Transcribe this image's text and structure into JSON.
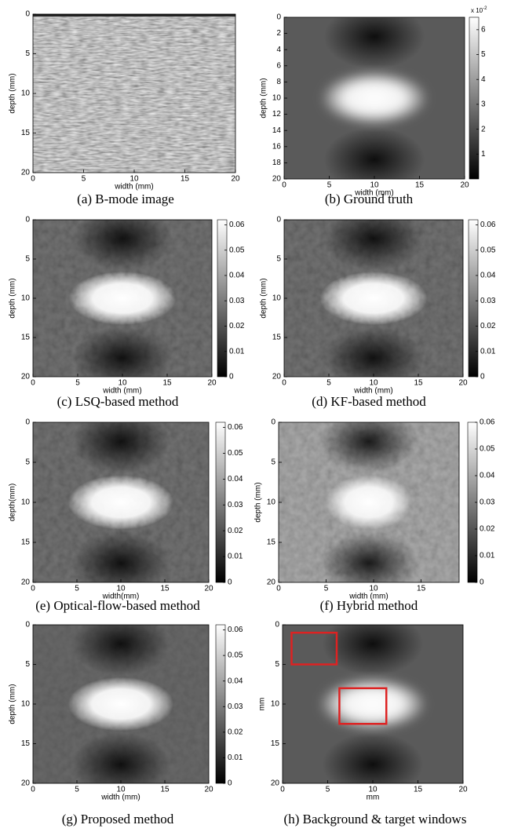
{
  "panels": [
    {
      "caption": "(a) B-mode image",
      "xlabel": "width (mm)",
      "ylabel": "depth (mm)",
      "xlim": [
        0,
        20
      ],
      "ylim": [
        0,
        20
      ],
      "xticks": [
        0,
        5,
        10,
        15,
        20
      ],
      "yticks": [
        0,
        5,
        10,
        15,
        20
      ]
    },
    {
      "caption": "(b) Ground truth",
      "xlabel": "width (mm)",
      "ylabel": "depth (mm)",
      "xlim": [
        0,
        20
      ],
      "ylim": [
        0,
        20
      ],
      "xticks": [
        0,
        5,
        10,
        15,
        20
      ],
      "yticks": [
        0,
        2,
        4,
        6,
        8,
        10,
        12,
        14,
        16,
        18,
        20
      ],
      "colorbar": {
        "clim": [
          0,
          6.5
        ],
        "ticks": [
          1,
          2,
          3,
          4,
          5,
          6
        ],
        "multiplier": "x 10",
        "exponent": "-2"
      }
    },
    {
      "caption": "(c) LSQ-based method",
      "xlabel": "width (mm)",
      "ylabel": "depth (mm)",
      "xlim": [
        0,
        20
      ],
      "ylim": [
        0,
        20
      ],
      "xticks": [
        0,
        5,
        10,
        15,
        20
      ],
      "yticks": [
        0,
        5,
        10,
        15,
        20
      ],
      "colorbar": {
        "clim": [
          0,
          0.062
        ],
        "ticks": [
          0,
          0.01,
          0.02,
          0.03,
          0.04,
          0.05,
          0.06
        ]
      }
    },
    {
      "caption": "(d) KF-based method",
      "xlabel": "width (mm)",
      "ylabel": "depth (mm)",
      "xlim": [
        0,
        20
      ],
      "ylim": [
        0,
        20
      ],
      "xticks": [
        0,
        5,
        10,
        15,
        20
      ],
      "yticks": [
        0,
        5,
        10,
        15,
        20
      ],
      "colorbar": {
        "clim": [
          0,
          0.062
        ],
        "ticks": [
          0,
          0.01,
          0.02,
          0.03,
          0.04,
          0.05,
          0.06
        ]
      }
    },
    {
      "caption": "(e) Optical-flow-based method",
      "xlabel": "width(mm)",
      "ylabel": "depth(mm)",
      "xlim": [
        0,
        20
      ],
      "ylim": [
        0,
        20
      ],
      "xticks": [
        0,
        5,
        10,
        15,
        20
      ],
      "yticks": [
        0,
        5,
        10,
        15,
        20
      ],
      "colorbar": {
        "clim": [
          0,
          0.062
        ],
        "ticks": [
          0,
          0.01,
          0.02,
          0.03,
          0.04,
          0.05,
          0.06
        ]
      }
    },
    {
      "caption": "(f) Hybrid method",
      "xlabel": "width (mm)",
      "ylabel": "depth (mm)",
      "xlim": [
        0,
        19
      ],
      "ylim": [
        0,
        20
      ],
      "xticks": [
        0,
        5,
        10,
        15
      ],
      "yticks": [
        0,
        5,
        10,
        15,
        20
      ],
      "colorbar": {
        "clim": [
          0,
          0.06
        ],
        "ticks": [
          0,
          0.01,
          0.02,
          0.03,
          0.04,
          0.05,
          0.06
        ]
      }
    },
    {
      "caption": "(g) Proposed method",
      "xlabel": "width (mm)",
      "ylabel": "depth (mm)",
      "xlim": [
        0,
        20
      ],
      "ylim": [
        0,
        20
      ],
      "xticks": [
        0,
        5,
        10,
        15,
        20
      ],
      "yticks": [
        0,
        5,
        10,
        15,
        20
      ],
      "colorbar": {
        "clim": [
          0,
          0.062
        ],
        "ticks": [
          0,
          0.01,
          0.02,
          0.03,
          0.04,
          0.05,
          0.06
        ]
      }
    },
    {
      "caption": "(h) Background & target windows",
      "xlabel": "mm",
      "ylabel": "mm",
      "xlim": [
        0,
        20
      ],
      "ylim": [
        0,
        20
      ],
      "xticks": [
        0,
        5,
        10,
        15,
        20
      ],
      "yticks": [
        0,
        5,
        10,
        15,
        20
      ]
    }
  ]
}
